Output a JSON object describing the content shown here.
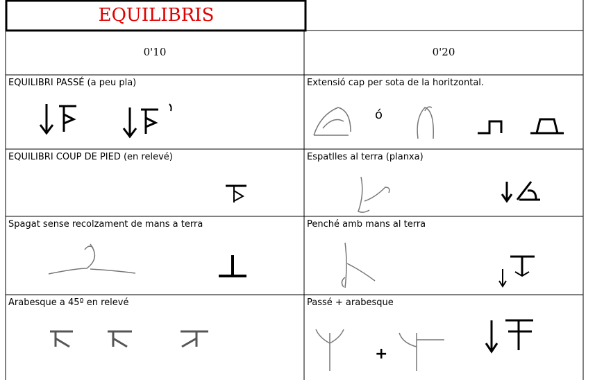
{
  "title": "EQUILIBRIS",
  "table": {
    "header": [
      "0'10",
      "0'20"
    ],
    "rows": [
      [
        "EQUILIBRI PASSÉ (a peu pla)",
        "Extensió cap per sota de la horitzontal."
      ],
      [
        "EQUILIBRI COUP DE PIED (en relevé)",
        "Espatlles al terra  (planxa)"
      ],
      [
        "Spagat sense recolzament de mans a terra",
        "Penché amb mans al terra"
      ],
      [
        "Arabesque a 45º en relevé",
        "Passé  +  arabesque"
      ]
    ]
  },
  "connectors": [
    "ó",
    "+"
  ]
}
